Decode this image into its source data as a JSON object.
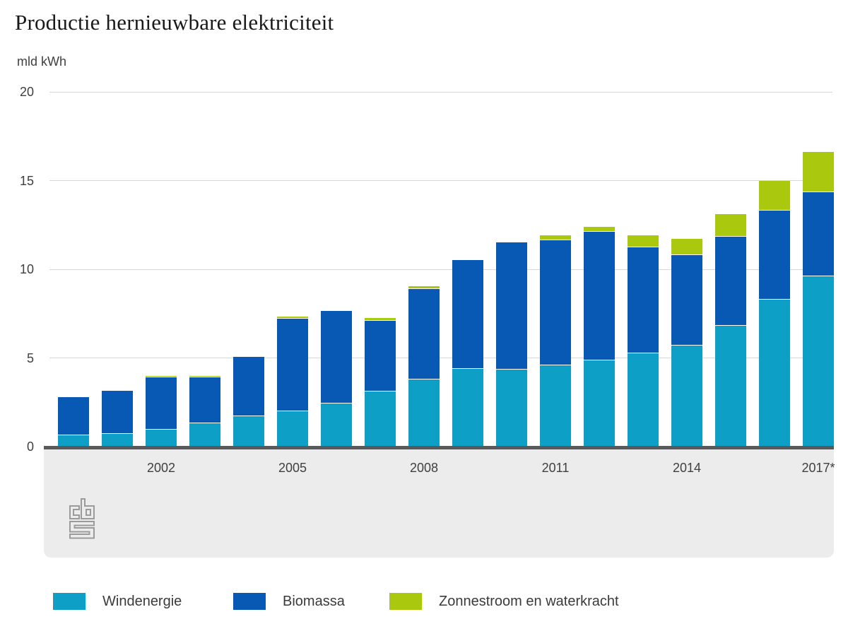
{
  "title": "Productie hernieuwbare elektriciteit",
  "y_axis": {
    "unit": "mld kWh",
    "ticks": [
      20,
      15,
      10,
      5,
      0
    ]
  },
  "x_axis": {
    "labels": [
      {
        "text": "2002",
        "bar_index": 2
      },
      {
        "text": "2005",
        "bar_index": 5
      },
      {
        "text": "2008",
        "bar_index": 8
      },
      {
        "text": "2011",
        "bar_index": 11
      },
      {
        "text": "2014",
        "bar_index": 14
      },
      {
        "text": "2017*",
        "bar_index": 17
      }
    ]
  },
  "legend": {
    "items": [
      {
        "label": "Windenergie",
        "color": "#0d9fc5"
      },
      {
        "label": "Biomassa",
        "color": "#0859b4"
      },
      {
        "label": "Zonnestroom en waterkracht",
        "color": "#aac80e"
      }
    ]
  },
  "branding": {
    "logo": "cbs-logo",
    "logo_color": "#9b9b9b"
  },
  "colors": {
    "axis": "#58595b",
    "grid": "#d8d8d8",
    "band": "#ececec",
    "tick_text": "#404040"
  },
  "chart_data": {
    "type": "bar",
    "stacked": true,
    "title": "Productie hernieuwbare elektriciteit",
    "ylabel": "mld kWh",
    "ylim": [
      0,
      20
    ],
    "grid": true,
    "legend_position": "bottom",
    "categories": [
      2000,
      2001,
      2002,
      2003,
      2004,
      2005,
      2006,
      2007,
      2008,
      2009,
      2010,
      2011,
      2012,
      2013,
      2014,
      2015,
      2016,
      2017
    ],
    "shown_tick_labels": [
      "2002",
      "2005",
      "2008",
      "2011",
      "2014",
      "2017*"
    ],
    "series": [
      {
        "name": "Windenergie",
        "color": "#0d9fc5",
        "values": [
          0.65,
          0.7,
          0.95,
          1.3,
          1.7,
          2.0,
          2.45,
          3.1,
          3.8,
          4.4,
          4.35,
          4.6,
          4.85,
          5.25,
          5.7,
          6.8,
          8.3,
          9.6
        ]
      },
      {
        "name": "Biomassa",
        "color": "#0859b4",
        "values": [
          2.15,
          2.45,
          2.95,
          2.6,
          3.35,
          5.2,
          5.2,
          4.0,
          5.1,
          6.1,
          7.15,
          7.05,
          7.25,
          6.0,
          5.1,
          5.05,
          5.0,
          4.75
        ]
      },
      {
        "name": "Zonnestroom en waterkracht",
        "color": "#aac80e",
        "values": [
          0,
          0,
          0.1,
          0.1,
          0,
          0.15,
          0,
          0.15,
          0.15,
          0,
          0,
          0.25,
          0.3,
          0.65,
          0.9,
          1.25,
          1.7,
          2.25
        ]
      }
    ]
  }
}
